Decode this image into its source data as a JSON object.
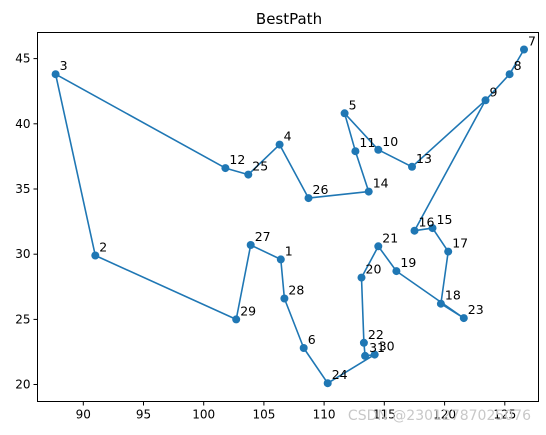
{
  "chart_data": {
    "type": "line",
    "title": "BestPath",
    "xlabel": "",
    "ylabel": "",
    "xlim": [
      86.2,
      127.8
    ],
    "ylim": [
      18.7,
      47.0
    ],
    "xticks": [
      90,
      95,
      100,
      105,
      110,
      115,
      120,
      125
    ],
    "yticks": [
      20,
      25,
      30,
      35,
      40,
      45
    ],
    "grid": false,
    "line_color": "#1f77b4",
    "path_order": [
      3,
      12,
      25,
      4,
      26,
      14,
      11,
      5,
      10,
      13,
      9,
      8,
      7,
      8,
      9,
      16,
      15,
      17,
      18,
      23,
      19,
      21,
      20,
      22,
      31,
      30,
      24,
      6,
      28,
      1,
      27,
      29,
      2,
      3
    ],
    "points": [
      {
        "label": "1",
        "x": 106.4,
        "y": 29.6
      },
      {
        "label": "2",
        "x": 91.0,
        "y": 29.9
      },
      {
        "label": "3",
        "x": 87.7,
        "y": 43.8
      },
      {
        "label": "4",
        "x": 106.3,
        "y": 38.4
      },
      {
        "label": "5",
        "x": 111.7,
        "y": 40.8
      },
      {
        "label": "6",
        "x": 108.3,
        "y": 22.8
      },
      {
        "label": "7",
        "x": 126.6,
        "y": 45.7
      },
      {
        "label": "8",
        "x": 125.4,
        "y": 43.8
      },
      {
        "label": "9",
        "x": 123.4,
        "y": 41.8
      },
      {
        "label": "10",
        "x": 114.5,
        "y": 38.0
      },
      {
        "label": "11",
        "x": 112.6,
        "y": 37.9
      },
      {
        "label": "12",
        "x": 101.8,
        "y": 36.6
      },
      {
        "label": "13",
        "x": 117.3,
        "y": 36.7
      },
      {
        "label": "14",
        "x": 113.7,
        "y": 34.8
      },
      {
        "label": "15",
        "x": 119.0,
        "y": 32.0
      },
      {
        "label": "16",
        "x": 117.5,
        "y": 31.8
      },
      {
        "label": "17",
        "x": 120.3,
        "y": 30.2
      },
      {
        "label": "18",
        "x": 119.7,
        "y": 26.2
      },
      {
        "label": "19",
        "x": 116.0,
        "y": 28.7
      },
      {
        "label": "20",
        "x": 113.1,
        "y": 28.2
      },
      {
        "label": "21",
        "x": 114.5,
        "y": 30.6
      },
      {
        "label": "22",
        "x": 113.3,
        "y": 23.2
      },
      {
        "label": "23",
        "x": 121.6,
        "y": 25.1
      },
      {
        "label": "24",
        "x": 110.3,
        "y": 20.1
      },
      {
        "label": "25",
        "x": 103.7,
        "y": 36.1
      },
      {
        "label": "26",
        "x": 108.7,
        "y": 34.3
      },
      {
        "label": "27",
        "x": 103.9,
        "y": 30.7
      },
      {
        "label": "28",
        "x": 106.7,
        "y": 26.6
      },
      {
        "label": "29",
        "x": 102.7,
        "y": 25.0
      },
      {
        "label": "30",
        "x": 114.2,
        "y": 22.3
      },
      {
        "label": "31",
        "x": 113.4,
        "y": 22.2
      }
    ]
  },
  "watermark": "CSDN @23012787025076"
}
